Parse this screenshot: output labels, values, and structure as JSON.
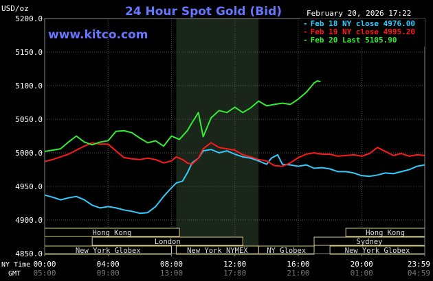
{
  "header": {
    "title": "24 Hour Spot Gold (Bid)",
    "date": "February 20, 2026 17:22",
    "units": "USD/oz",
    "site": "www.kitco.com"
  },
  "legend": [
    {
      "text": "Feb 18 NY close 4976.00",
      "color": "#33ccff"
    },
    {
      "text": "Feb 19 NY close 4995.20",
      "color": "#ff1a1a"
    },
    {
      "text": "Feb 20 Last 5105.90",
      "color": "#33ee33"
    }
  ],
  "axis": {
    "y_ticks": [
      "5200.0",
      "5150.0",
      "5100.0",
      "5050.0",
      "5000.0",
      "4950.0",
      "4900.0",
      "4850.0"
    ],
    "x_ticks_ny": [
      "00:00",
      "04:00",
      "08:00",
      "12:00",
      "16:00",
      "20:00",
      "23:59"
    ],
    "x_ticks_gmt": [
      "05:00",
      "09:00",
      "13:00",
      "17:00",
      "21:00",
      "01:00",
      "04:59"
    ],
    "ny_time_label": "NY Time",
    "gmt_label": "GMT"
  },
  "sessions": [
    {
      "label": "Hong Kong",
      "row": 0,
      "start": 0.0,
      "end": 8.5
    },
    {
      "label": "London",
      "row": 1,
      "start": 3.0,
      "end": 12.5
    },
    {
      "label": "New York Globex",
      "row": 2,
      "start": 0.0,
      "end": 8.0
    },
    {
      "label": "New York NYMEX",
      "row": 2,
      "start": 8.3,
      "end": 13.5
    },
    {
      "label": "NY Globex",
      "row": 2,
      "start": 13.5,
      "end": 17.0
    },
    {
      "label": "Hong Kong",
      "row": 0,
      "start": 19.0,
      "end": 23.98
    },
    {
      "label": "Sydney",
      "row": 1,
      "start": 17.0,
      "end": 23.98
    },
    {
      "label": "New York Globex",
      "row": 2,
      "start": 18.0,
      "end": 23.98
    }
  ],
  "chart_data": {
    "type": "line",
    "title": "24 Hour Spot Gold (Bid)",
    "ylabel": "USD/oz",
    "xlabel": "",
    "ylim": [
      4850,
      5200
    ],
    "xlim": [
      0,
      23.98
    ],
    "x_unit": "hours NY time",
    "highlight_band": [
      8.3,
      13.5
    ],
    "grid": true,
    "series": [
      {
        "name": "Feb 18 NY close 4976.00",
        "color": "#33ccff",
        "x": [
          0,
          0.5,
          1,
          1.5,
          2,
          2.5,
          3,
          3.5,
          4,
          4.5,
          5,
          5.5,
          6,
          6.5,
          7,
          7.5,
          8,
          8.3,
          8.7,
          9,
          9.3,
          9.7,
          10,
          10.5,
          11,
          11.5,
          12,
          12.5,
          13,
          13.5,
          14,
          14.3,
          14.7,
          15,
          15.5,
          16,
          16.5,
          17,
          17.5,
          18,
          18.5,
          19,
          19.5,
          20,
          20.5,
          21,
          21.5,
          22,
          22.5,
          23,
          23.5,
          23.98
        ],
        "values": [
          4937,
          4934,
          4930,
          4933,
          4935,
          4930,
          4922,
          4918,
          4920,
          4918,
          4915,
          4913,
          4910,
          4911,
          4920,
          4935,
          4948,
          4955,
          4958,
          4970,
          4985,
          4992,
          5003,
          5005,
          5000,
          5003,
          4998,
          4994,
          4992,
          4988,
          4983,
          4992,
          4997,
          4983,
          4982,
          4980,
          4982,
          4977,
          4978,
          4976,
          4972,
          4972,
          4970,
          4966,
          4965,
          4967,
          4970,
          4969,
          4972,
          4975,
          4980,
          4982
        ]
      },
      {
        "name": "Feb 19 NY close 4995.20",
        "color": "#ff1a1a",
        "x": [
          0,
          0.5,
          1,
          1.5,
          2,
          2.5,
          3,
          3.5,
          4,
          4.5,
          5,
          5.5,
          6,
          6.5,
          7,
          7.5,
          8,
          8.3,
          8.7,
          9,
          9.3,
          9.7,
          10,
          10.5,
          11,
          11.5,
          12,
          12.5,
          13,
          13.5,
          14,
          14.5,
          15,
          15.5,
          16,
          16.5,
          17,
          17.5,
          18,
          18.5,
          19,
          19.5,
          20,
          20.5,
          21,
          21.5,
          22,
          22.5,
          23,
          23.5,
          23.98
        ],
        "values": [
          4987,
          4990,
          4994,
          4998,
          5004,
          5010,
          5015,
          5013,
          5013,
          5003,
          4993,
          4991,
          4990,
          4992,
          4990,
          4985,
          4988,
          4994,
          4990,
          4985,
          4983,
          4992,
          5006,
          5015,
          5008,
          5006,
          5004,
          4997,
          4994,
          4990,
          4988,
          4981,
          4980,
          4985,
          4993,
          4998,
          5000,
          4998,
          4998,
          4995,
          4996,
          4997,
          4995,
          4999,
          5008,
          5002,
          4996,
          4999,
          4995,
          4997,
          4996
        ]
      },
      {
        "name": "Feb 20 Last 5105.90",
        "color": "#33ee33",
        "x": [
          0,
          0.5,
          1,
          1.5,
          2,
          2.5,
          3,
          3.5,
          4,
          4.5,
          5,
          5.5,
          6,
          6.5,
          7,
          7.5,
          8,
          8.5,
          9,
          9.3,
          9.7,
          10,
          10.5,
          11,
          11.5,
          12,
          12.5,
          13,
          13.5,
          14,
          14.5,
          15,
          15.5,
          16,
          16.5,
          17,
          17.2,
          17.4
        ],
        "values": [
          5002,
          5004,
          5006,
          5016,
          5025,
          5016,
          5012,
          5016,
          5018,
          5032,
          5033,
          5030,
          5022,
          5015,
          5018,
          5010,
          5025,
          5020,
          5033,
          5045,
          5060,
          5024,
          5052,
          5063,
          5060,
          5068,
          5060,
          5067,
          5077,
          5070,
          5072,
          5074,
          5072,
          5080,
          5090,
          5104,
          5107,
          5106
        ]
      }
    ]
  }
}
